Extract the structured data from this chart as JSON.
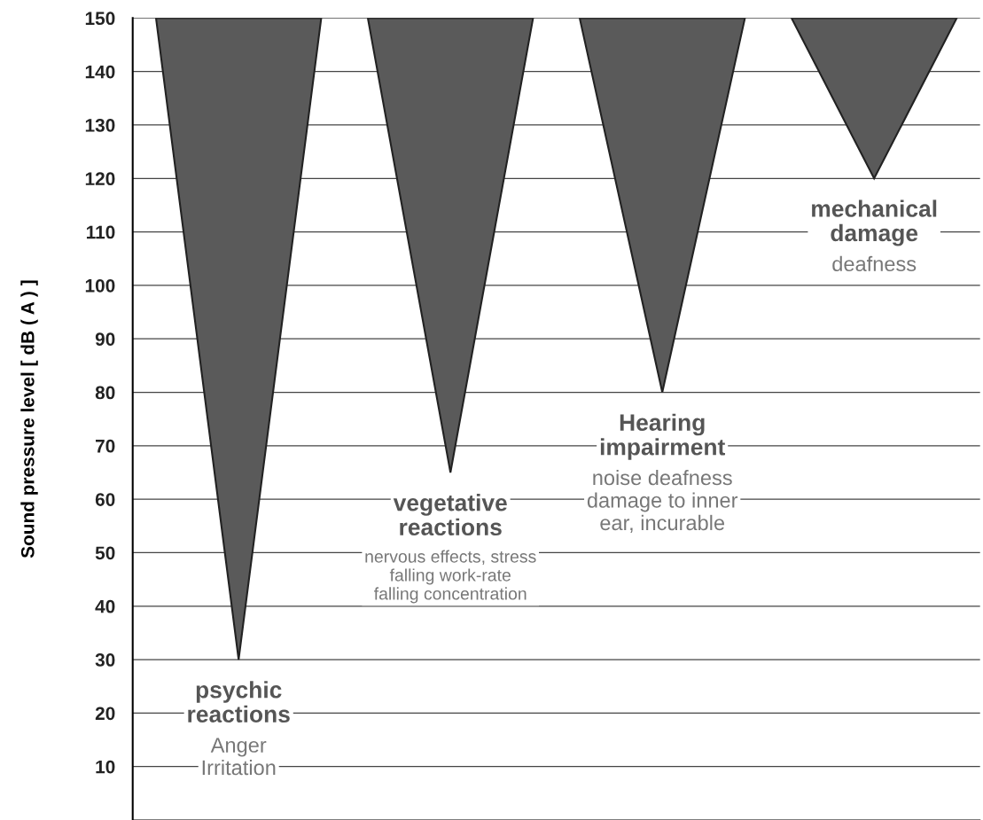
{
  "chart_data": {
    "type": "bar",
    "ylabel": "Sound pressure level [ dB ( A ) ]",
    "categories": [
      "psychic\nreactions",
      "vegetative\nreactions",
      "Hearing\nimpairment",
      "mechanical\ndamage"
    ],
    "base": [
      30,
      65,
      80,
      120
    ],
    "values": [
      120,
      85,
      70,
      30
    ],
    "colors": [
      "#5a5a5a",
      "#5a5a5a",
      "#5a5a5a",
      "#5a5a5a"
    ],
    "ylim": [
      0,
      150
    ],
    "yticks": [
      10,
      20,
      30,
      40,
      50,
      60,
      70,
      80,
      90,
      100,
      110,
      120,
      130,
      140,
      150
    ],
    "grid": "y",
    "annotations": [
      "Anger\nIrritation",
      "nervous effects, stress\nfalling work-rate\nfalling concentration",
      "noise deafness\ndamage to inner\near, incurable",
      "deafness"
    ]
  }
}
